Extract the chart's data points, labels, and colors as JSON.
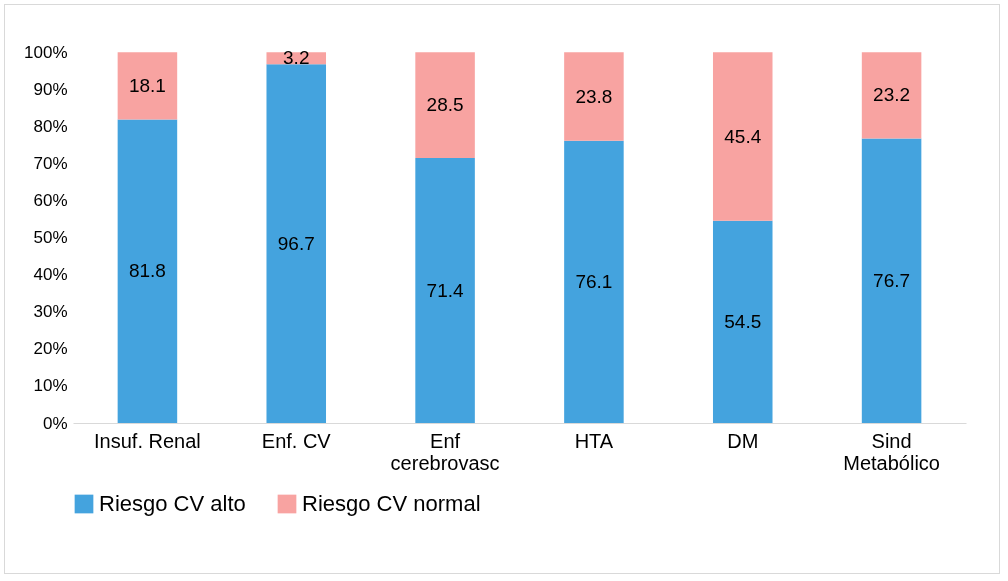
{
  "chart_data": {
    "type": "bar",
    "stacked": true,
    "categories": [
      "Insuf. Renal",
      "Enf. CV",
      "Enf cerebrovasc",
      "HTA",
      "DM",
      "Sind Metabólico"
    ],
    "series": [
      {
        "name": "Riesgo CV alto",
        "color": "#44a3de",
        "values": [
          81.8,
          96.7,
          71.4,
          76.1,
          54.5,
          76.7
        ]
      },
      {
        "name": "Riesgo CV normal",
        "color": "#f8a3a1",
        "values": [
          18.1,
          3.2,
          28.5,
          23.8,
          45.4,
          23.2
        ]
      }
    ],
    "ylim": [
      0,
      100
    ],
    "yticks": [
      {
        "value": 0,
        "label": "0%"
      },
      {
        "value": 10,
        "label": "10%"
      },
      {
        "value": 20,
        "label": "20%"
      },
      {
        "value": 30,
        "label": "30%"
      },
      {
        "value": 40,
        "label": "40%"
      },
      {
        "value": 50,
        "label": "50%"
      },
      {
        "value": 60,
        "label": "60%"
      },
      {
        "value": 70,
        "label": "70%"
      },
      {
        "value": 80,
        "label": "80%"
      },
      {
        "value": 90,
        "label": "90%"
      },
      {
        "value": 100,
        "label": "100%"
      }
    ],
    "data_labels": true,
    "legend": "bottom"
  }
}
